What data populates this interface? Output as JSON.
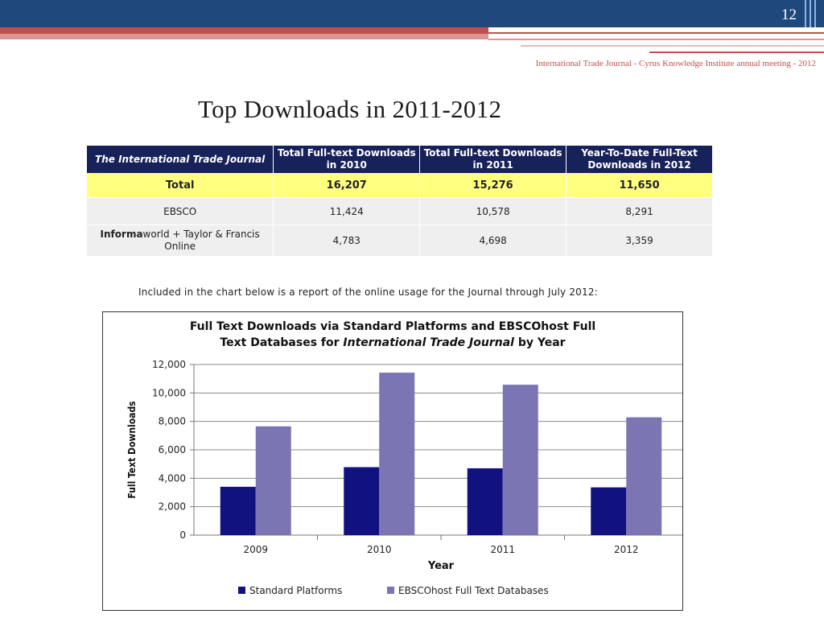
{
  "header": {
    "page_number": "12",
    "meeting_line": "International Trade Journal - Cyrus Knowledge Institute annual meeting - 2012"
  },
  "slide_title": "Top Downloads in 2011-2012",
  "table": {
    "headers": [
      "The International Trade Journal",
      "Total Full-text Downloads in 2010",
      "Total Full-text Downloads in 2011",
      "Year-To-Date Full-Text Downloads in 2012"
    ],
    "rows": [
      {
        "label": "Total",
        "values": [
          "16,207",
          "15,276",
          "11,650"
        ]
      },
      {
        "label": "EBSCO",
        "values": [
          "11,424",
          "10,578",
          "8,291"
        ]
      },
      {
        "label_bold": "Informa",
        "label_rest": "world + Taylor & Francis Online",
        "values": [
          "4,783",
          "4,698",
          "3,359"
        ]
      }
    ]
  },
  "note": "Included in the chart below is a report of the online usage for the Journal through July 2012:",
  "chart_title": {
    "line1": "Full Text Downloads via Standard Platforms and EBSCOhost Full",
    "line2_pre": "Text Databases for ",
    "line2_italic": "International Trade Journal",
    "line2_post": " by Year"
  },
  "chart_data": {
    "type": "bar",
    "categories": [
      "2009",
      "2010",
      "2011",
      "2012"
    ],
    "series": [
      {
        "name": "Standard Platforms",
        "values": [
          3400,
          4780,
          4700,
          3360
        ],
        "color": "#11117f"
      },
      {
        "name": "EBSCOhost Full Text Databases",
        "values": [
          7650,
          11430,
          10580,
          8290
        ],
        "color": "#7b75b3"
      }
    ],
    "xlabel": "Year",
    "ylabel": "Full Text Downloads",
    "ylim": [
      0,
      12000
    ],
    "yticks": [
      "0",
      "2,000",
      "4,000",
      "6,000",
      "8,000",
      "10,000",
      "12,000"
    ],
    "grid": true,
    "legend_position": "bottom"
  }
}
